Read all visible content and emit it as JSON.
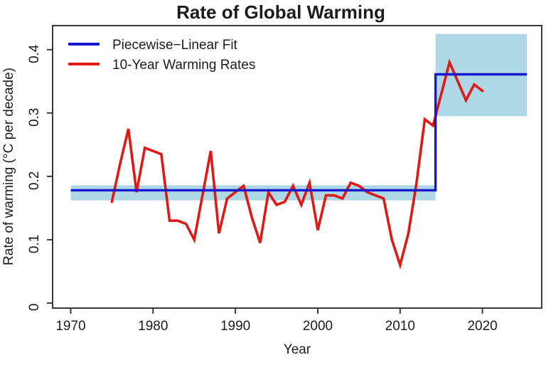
{
  "title": "Rate of Global Warming",
  "chart_data": {
    "type": "line",
    "title": "Rate of Global Warming",
    "xlabel": "Year",
    "ylabel": "Rate of warming (°C per decade)",
    "xlim": [
      1967.8,
      2027.2
    ],
    "ylim": [
      -0.008,
      0.438
    ],
    "grid": false,
    "xticks": {
      "values": [
        1970,
        1980,
        1990,
        2000,
        2010,
        2020
      ],
      "labels": [
        "1970",
        "1980",
        "1990",
        "2000",
        "2010",
        "2020"
      ]
    },
    "yticks": {
      "values": [
        0,
        0.1,
        0.2,
        0.3,
        0.4
      ],
      "labels": [
        "0",
        "0.1",
        "0.2",
        "0.3",
        "0.4"
      ]
    },
    "legend": {
      "position": "top-left",
      "entries": [
        {
          "label": "Piecewise−Linear Fit",
          "color": "#1717cf"
        },
        {
          "label": "10-Year Warming Rates",
          "color": "#dd1a15"
        }
      ]
    },
    "series": [
      {
        "name": "10-Year Warming Rates",
        "type": "line",
        "color": "#dd1a15",
        "x": [
          1975,
          1976,
          1977,
          1978,
          1979,
          1980,
          1981,
          1982,
          1983,
          1984,
          1985,
          1986,
          1987,
          1988,
          1989,
          1990,
          1991,
          1992,
          1993,
          1994,
          1995,
          1996,
          1997,
          1998,
          1999,
          2000,
          2001,
          2002,
          2003,
          2004,
          2005,
          2006,
          2007,
          2008,
          2009,
          2010,
          2011,
          2012,
          2013,
          2014,
          2015,
          2016,
          2017,
          2018,
          2019,
          2020
        ],
        "y": [
          0.16,
          0.22,
          0.275,
          0.175,
          0.245,
          0.24,
          0.235,
          0.13,
          0.13,
          0.125,
          0.1,
          0.17,
          0.24,
          0.11,
          0.165,
          0.175,
          0.185,
          0.135,
          0.095,
          0.175,
          0.155,
          0.16,
          0.185,
          0.155,
          0.19,
          0.115,
          0.17,
          0.17,
          0.165,
          0.19,
          0.185,
          0.175,
          0.17,
          0.165,
          0.1,
          0.06,
          0.11,
          0.19,
          0.29,
          0.28,
          0.33,
          0.38,
          0.35,
          0.32,
          0.345,
          0.335
        ]
      },
      {
        "name": "Piecewise-Linear Fit",
        "type": "step",
        "color": "#1717cf",
        "ci_color": "#aed8e6",
        "segments": [
          {
            "x": [
              1970,
              2014.3
            ],
            "y": 0.178,
            "ci": [
              0.162,
              0.186
            ]
          },
          {
            "x": [
              2014.3,
              2025.4
            ],
            "y": 0.361,
            "ci": [
              0.295,
              0.425
            ]
          }
        ]
      }
    ]
  }
}
